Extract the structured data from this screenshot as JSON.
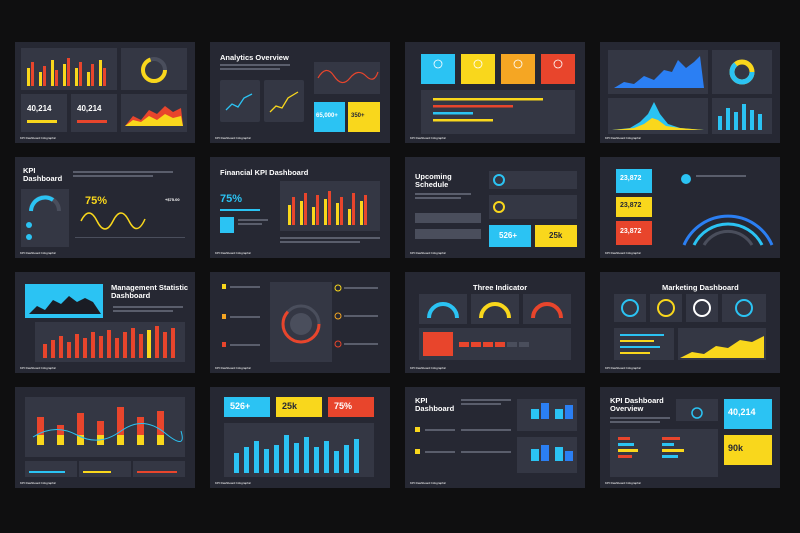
{
  "colors": {
    "background": "#0f0f10",
    "slide": "#262833",
    "panel": "#343744",
    "yellow": "#f9d71c",
    "red": "#e8452c",
    "cyan": "#2bc3f3",
    "orange": "#f5a623"
  },
  "footer": "KPI Dashboard Infographic",
  "slides": {
    "s1": {
      "stat_a": "40,214",
      "stat_b": "40,214"
    },
    "s2": {
      "title": "Analytics Overview",
      "stat_a": "65,000+",
      "stat_b": "350+"
    },
    "s5": {
      "title_line1": "KPI",
      "title_line2": "Dashboard",
      "percent": "75%",
      "money": "+$75.00"
    },
    "s6": {
      "title": "Financial KPI Dashboard",
      "percent": "75%"
    },
    "s7": {
      "title_line1": "Upcoming",
      "title_line2": "Schedule",
      "stat_a": "526+",
      "stat_b": "25k"
    },
    "s8": {
      "val_a": "23,872",
      "val_b": "23,872",
      "val_c": "23,872"
    },
    "s9": {
      "title_line1": "Management Statistic",
      "title_line2": "Dashboard"
    },
    "s11": {
      "title": "Three Indicator"
    },
    "s12": {
      "title": "Marketing Dashboard"
    },
    "s14": {
      "stat_a": "526+",
      "stat_b": "25k",
      "stat_c": "75%"
    },
    "s15": {
      "title_line1": "KPI",
      "title_line2": "Dashboard"
    },
    "s16": {
      "title_line1": "KPI Dashboard",
      "title_line2": "Overview",
      "stat_a": "40,214",
      "stat_b": "90k"
    }
  }
}
